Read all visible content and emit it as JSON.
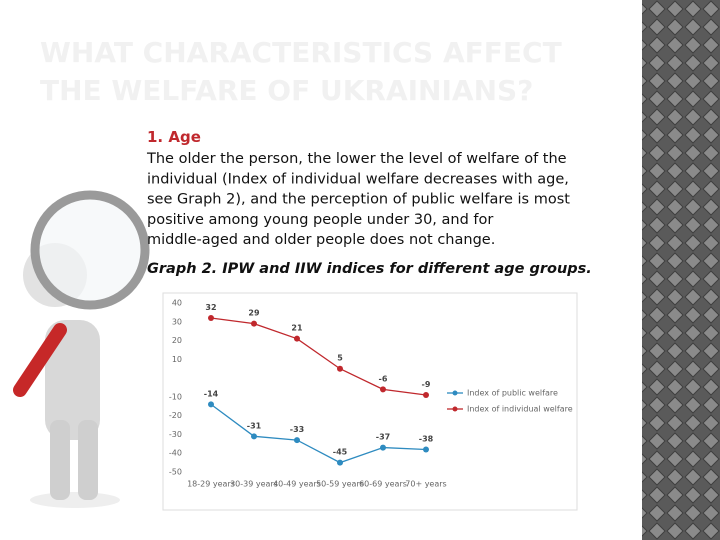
{
  "title": [
    "WHAT CHARACTERISTICS AFFECT",
    "THE WELFARE OF UKRAINIANS?"
  ],
  "section": "1. Age",
  "text": [
    "The older the person, the lower the level of welfare of the",
    "individual (Index of individual welfare decreases with age,",
    "see Graph 2), and the perception of public welfare is most",
    "positive among young people under 30, and for",
    "middle-aged and older people does not change."
  ],
  "caption": "Graph 2. IPW and IIW indices for different age groups.",
  "chart_data": {
    "type": "line",
    "categories": [
      "18-29 years",
      "30-39 years",
      "40-49 years",
      "50-59 years",
      "60-69 years",
      "70+ years"
    ],
    "series": [
      {
        "name": "Index of public welfare",
        "color": "#2e8bc0",
        "values": [
          -14,
          -31,
          -33,
          -45,
          -37,
          -38
        ]
      },
      {
        "name": "Index of individual welfare",
        "color": "#c0282d",
        "values": [
          32,
          29,
          21,
          5,
          -6,
          -9
        ]
      }
    ],
    "ylim": [
      -50,
      40
    ],
    "yticks": [
      -50,
      -40,
      -30,
      -20,
      -10,
      10,
      20,
      30,
      40
    ],
    "grid": false,
    "legend": "right"
  }
}
